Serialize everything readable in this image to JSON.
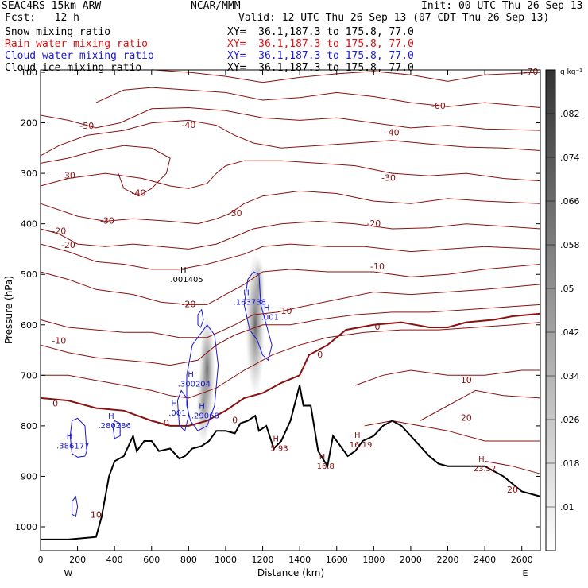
{
  "header": {
    "model": "SEAC4RS 15km ARW",
    "center": "NCAR/MMM",
    "init": "Init: 00 UTC Thu 26 Sep 13",
    "fcst": "Fcst:   12 h",
    "valid": "Valid: 12 UTC Thu 26 Sep 13 (07 CDT Thu 26 Sep 13)"
  },
  "legend": [
    {
      "label": "Snow mixing ratio",
      "xy": "XY=  36.1,187.3 to 175.8, 77.0",
      "color": "#000000"
    },
    {
      "label": "Rain water mixing ratio",
      "xy": "XY=  36.1,187.3 to 175.8, 77.0",
      "color": "#e01010"
    },
    {
      "label": "Cloud water mixing ratio",
      "xy": "XY=  36.1,187.3 to 175.8, 77.0",
      "color": "#1a1ad0"
    },
    {
      "label": "Cloud ice mixing ratio",
      "xy": "XY=  36.1,187.3 to 175.8, 77.0",
      "color": "#000000"
    }
  ],
  "colorbar": {
    "unit": "g kg⁻¹",
    "labels": [
      ".01",
      ".018",
      ".026",
      ".034",
      ".042",
      ".05",
      ".058",
      ".066",
      ".074",
      ".082"
    ]
  },
  "chart_data": {
    "type": "contour-cross-section",
    "xlabel": "Distance (km)",
    "ylabel": "Pressure (hPa)",
    "x_ticks": [
      0,
      200,
      400,
      600,
      800,
      1000,
      1200,
      1400,
      1600,
      1800,
      2000,
      2200,
      2400,
      2600
    ],
    "y_ticks": [
      100,
      200,
      300,
      400,
      500,
      600,
      700,
      800,
      900,
      1000
    ],
    "xlim": [
      0,
      2700
    ],
    "ylim": [
      1030,
      100
    ],
    "x_end_labels": {
      "left": "W",
      "right": "E"
    },
    "temperature_contours_C": [
      -70,
      -60,
      -50,
      -40,
      -30,
      -20,
      -10,
      0,
      10,
      20
    ],
    "temperature_labels": [
      {
        "text": "-70",
        "x": 2650,
        "y": 105
      },
      {
        "text": "-60",
        "x": 2150,
        "y": 172
      },
      {
        "text": "-50",
        "x": 250,
        "y": 212
      },
      {
        "text": "-40",
        "x": 800,
        "y": 210
      },
      {
        "text": "-40",
        "x": 1900,
        "y": 225
      },
      {
        "text": "-40",
        "x": 530,
        "y": 345
      },
      {
        "text": "-30",
        "x": 150,
        "y": 310
      },
      {
        "text": "-30",
        "x": 1880,
        "y": 315
      },
      {
        "text": "-30",
        "x": 1050,
        "y": 385
      },
      {
        "text": "-30",
        "x": 360,
        "y": 400
      },
      {
        "text": "-20",
        "x": 100,
        "y": 420
      },
      {
        "text": "-20",
        "x": 150,
        "y": 448
      },
      {
        "text": "-20",
        "x": 1800,
        "y": 405
      },
      {
        "text": "-20",
        "x": 800,
        "y": 565
      },
      {
        "text": "-10",
        "x": 1820,
        "y": 490
      },
      {
        "text": "-10",
        "x": 1320,
        "y": 578
      },
      {
        "text": "-10",
        "x": 100,
        "y": 637
      },
      {
        "text": "0",
        "x": 1820,
        "y": 610
      },
      {
        "text": "0",
        "x": 1510,
        "y": 665
      },
      {
        "text": "0",
        "x": 80,
        "y": 762
      },
      {
        "text": "0",
        "x": 1050,
        "y": 795
      },
      {
        "text": "0",
        "x": 680,
        "y": 800
      },
      {
        "text": "10",
        "x": 2300,
        "y": 715
      },
      {
        "text": "10",
        "x": 300,
        "y": 982
      },
      {
        "text": "20",
        "x": 2300,
        "y": 790
      },
      {
        "text": "20",
        "x": 2550,
        "y": 932
      }
    ],
    "high_labels": [
      {
        "text": ".001405",
        "x": 790,
        "y": 515,
        "color": "#000000"
      },
      {
        "text": ".163738",
        "x": 1130,
        "y": 560,
        "color": "#1a1ad0"
      },
      {
        "text": ".001",
        "x": 1240,
        "y": 590,
        "color": "#1a1ad0"
      },
      {
        "text": ".300204",
        "x": 830,
        "y": 722,
        "color": "#1a1ad0"
      },
      {
        "text": ".001",
        "x": 740,
        "y": 780,
        "color": "#1a1ad0"
      },
      {
        "text": ".29068",
        "x": 890,
        "y": 785,
        "color": "#1a1ad0"
      },
      {
        "text": ".280286",
        "x": 400,
        "y": 805,
        "color": "#1a1ad0"
      },
      {
        "text": ".386177",
        "x": 175,
        "y": 845,
        "color": "#1a1ad0"
      },
      {
        "text": "5.93",
        "x": 1290,
        "y": 850,
        "color": "#8b1010"
      },
      {
        "text": "16.8",
        "x": 1540,
        "y": 885,
        "color": "#8b1010"
      },
      {
        "text": "16.19",
        "x": 1730,
        "y": 843,
        "color": "#8b1010"
      },
      {
        "text": "23.52",
        "x": 2400,
        "y": 890,
        "color": "#8b1010"
      }
    ]
  }
}
